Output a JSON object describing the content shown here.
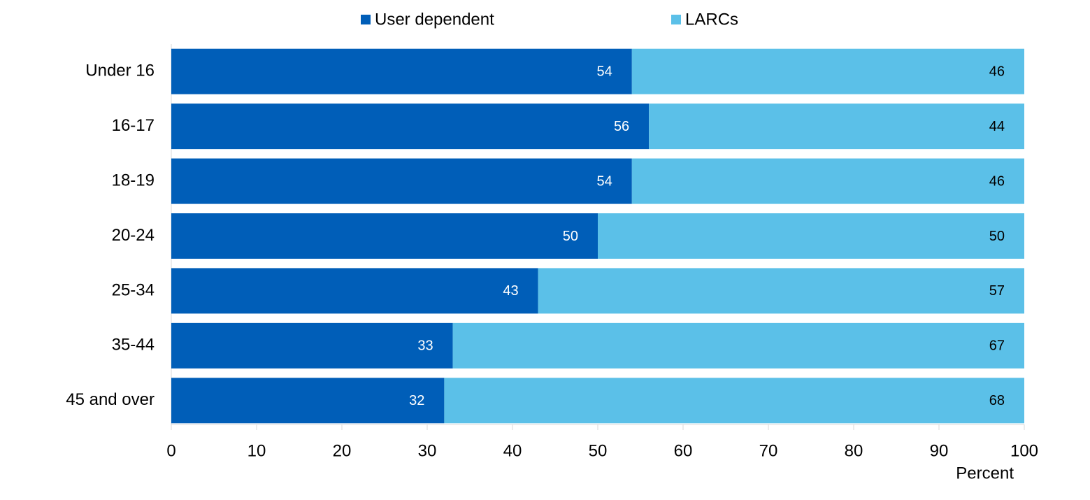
{
  "chart_data": {
    "type": "stacked-barh",
    "categories": [
      "Under 16",
      "16-17",
      "18-19",
      "20-24",
      "25-34",
      "35-44",
      "45 and over"
    ],
    "series": [
      {
        "name": "User dependent",
        "color": "#005eb8",
        "label_color": "#ffffff",
        "values": [
          54,
          56,
          54,
          50,
          43,
          33,
          32
        ]
      },
      {
        "name": "LARCs",
        "color": "#5bc0e8",
        "label_color": "#000000",
        "values": [
          46,
          44,
          46,
          50,
          57,
          67,
          68
        ]
      }
    ],
    "xlim": [
      0,
      100
    ],
    "xticks": [
      0,
      10,
      20,
      30,
      40,
      50,
      60,
      70,
      80,
      90,
      100
    ],
    "xlabel": "Percent",
    "legend": "top"
  }
}
